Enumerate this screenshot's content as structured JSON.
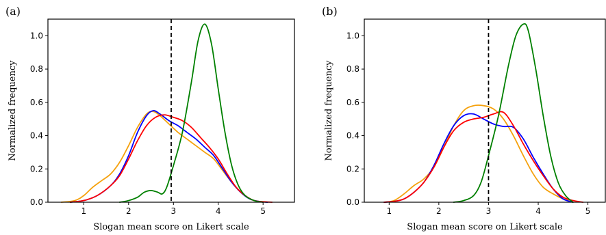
{
  "chart_data": [
    {
      "type": "line",
      "panel_label": "(a)",
      "title": "",
      "xlabel": "Slogan mean score on Likert scale",
      "ylabel": "Normalized frequency",
      "xlim": [
        0.2,
        5.7
      ],
      "ylim": [
        0,
        1.1
      ],
      "xticks": [
        1,
        2,
        3,
        4,
        5
      ],
      "yticks": [
        0.0,
        0.2,
        0.4,
        0.6,
        0.8,
        1.0
      ],
      "xtick_labels": [
        "1",
        "2",
        "3",
        "4",
        "5"
      ],
      "ytick_labels": [
        "0.0",
        "0.2",
        "0.4",
        "0.6",
        "0.8",
        "1.0"
      ],
      "vline": 2.95,
      "grid": false,
      "series": [
        {
          "color": "#f5a10c",
          "x": [
            0.5,
            0.8,
            1.0,
            1.2,
            1.4,
            1.6,
            1.8,
            2.0,
            2.2,
            2.4,
            2.55,
            2.7,
            2.9,
            3.1,
            3.3,
            3.5,
            3.7,
            3.9,
            4.1,
            4.3,
            4.5,
            4.7,
            4.9,
            5.1
          ],
          "values": [
            0.0,
            0.01,
            0.04,
            0.09,
            0.13,
            0.17,
            0.24,
            0.34,
            0.45,
            0.53,
            0.545,
            0.52,
            0.47,
            0.42,
            0.38,
            0.34,
            0.3,
            0.26,
            0.19,
            0.12,
            0.06,
            0.02,
            0.005,
            0.0
          ]
        },
        {
          "color": "#0000ff",
          "x": [
            0.7,
            1.0,
            1.3,
            1.6,
            1.8,
            2.0,
            2.2,
            2.4,
            2.55,
            2.7,
            2.9,
            3.1,
            3.3,
            3.5,
            3.7,
            3.9,
            4.1,
            4.3,
            4.5,
            4.7,
            4.9,
            5.1
          ],
          "values": [
            0.0,
            0.01,
            0.04,
            0.1,
            0.17,
            0.28,
            0.42,
            0.52,
            0.55,
            0.53,
            0.49,
            0.46,
            0.42,
            0.38,
            0.33,
            0.28,
            0.2,
            0.12,
            0.06,
            0.02,
            0.005,
            0.0
          ]
        },
        {
          "color": "#ff0000",
          "x": [
            0.7,
            1.0,
            1.3,
            1.6,
            1.8,
            2.0,
            2.2,
            2.4,
            2.6,
            2.8,
            3.0,
            3.2,
            3.4,
            3.6,
            3.8,
            4.0,
            4.2,
            4.4,
            4.6,
            4.8,
            5.0,
            5.2
          ],
          "values": [
            0.0,
            0.01,
            0.04,
            0.1,
            0.16,
            0.26,
            0.37,
            0.46,
            0.51,
            0.525,
            0.51,
            0.49,
            0.45,
            0.39,
            0.33,
            0.26,
            0.17,
            0.09,
            0.04,
            0.01,
            0.003,
            0.0
          ]
        },
        {
          "color": "#008000",
          "x": [
            1.8,
            2.0,
            2.2,
            2.35,
            2.5,
            2.65,
            2.75,
            2.85,
            3.0,
            3.2,
            3.4,
            3.55,
            3.7,
            3.85,
            4.0,
            4.15,
            4.3,
            4.45,
            4.6,
            4.8,
            5.0
          ],
          "values": [
            0.0,
            0.01,
            0.03,
            0.06,
            0.07,
            0.06,
            0.05,
            0.09,
            0.22,
            0.42,
            0.72,
            0.97,
            1.07,
            0.95,
            0.68,
            0.42,
            0.22,
            0.1,
            0.04,
            0.01,
            0.0
          ]
        }
      ]
    },
    {
      "type": "line",
      "panel_label": "(b)",
      "title": "",
      "xlabel": "Slogan mean score on Likert scale",
      "ylabel": "Normalized frequency",
      "xlim": [
        0.5,
        5.35
      ],
      "ylim": [
        0,
        1.1
      ],
      "xticks": [
        1,
        2,
        3,
        4,
        5
      ],
      "yticks": [
        0.0,
        0.2,
        0.4,
        0.6,
        0.8,
        1.0
      ],
      "xtick_labels": [
        "1",
        "2",
        "3",
        "4",
        "5"
      ],
      "ytick_labels": [
        "0.0",
        "0.2",
        "0.4",
        "0.6",
        "0.8",
        "1.0"
      ],
      "vline": 3.0,
      "grid": false,
      "series": [
        {
          "color": "#f5a10c",
          "x": [
            0.9,
            1.1,
            1.3,
            1.5,
            1.7,
            1.9,
            2.1,
            2.3,
            2.5,
            2.7,
            2.9,
            3.1,
            3.3,
            3.5,
            3.7,
            3.9,
            4.1,
            4.3,
            4.5,
            4.7
          ],
          "values": [
            0.0,
            0.01,
            0.05,
            0.1,
            0.14,
            0.21,
            0.33,
            0.46,
            0.55,
            0.58,
            0.58,
            0.56,
            0.5,
            0.4,
            0.28,
            0.17,
            0.09,
            0.05,
            0.02,
            0.0
          ]
        },
        {
          "color": "#0000ff",
          "x": [
            0.9,
            1.1,
            1.3,
            1.5,
            1.7,
            1.9,
            2.1,
            2.3,
            2.5,
            2.7,
            2.9,
            3.1,
            3.3,
            3.5,
            3.7,
            3.9,
            4.1,
            4.3,
            4.5,
            4.7
          ],
          "values": [
            0.0,
            0.005,
            0.02,
            0.06,
            0.12,
            0.22,
            0.35,
            0.46,
            0.52,
            0.53,
            0.5,
            0.47,
            0.455,
            0.45,
            0.38,
            0.27,
            0.17,
            0.08,
            0.02,
            0.0
          ]
        },
        {
          "color": "#ff0000",
          "x": [
            0.9,
            1.1,
            1.3,
            1.5,
            1.7,
            1.9,
            2.1,
            2.3,
            2.5,
            2.7,
            2.9,
            3.1,
            3.3,
            3.5,
            3.7,
            3.9,
            4.1,
            4.3,
            4.5,
            4.7,
            4.9
          ],
          "values": [
            0.0,
            0.005,
            0.02,
            0.06,
            0.12,
            0.21,
            0.33,
            0.43,
            0.48,
            0.5,
            0.51,
            0.53,
            0.54,
            0.46,
            0.35,
            0.25,
            0.16,
            0.08,
            0.03,
            0.01,
            0.0
          ]
        },
        {
          "color": "#008000",
          "x": [
            2.3,
            2.5,
            2.7,
            2.85,
            3.0,
            3.2,
            3.4,
            3.55,
            3.7,
            3.8,
            3.95,
            4.1,
            4.25,
            4.4,
            4.55,
            4.7
          ],
          "values": [
            0.0,
            0.01,
            0.04,
            0.12,
            0.28,
            0.52,
            0.82,
            1.0,
            1.07,
            1.03,
            0.8,
            0.52,
            0.28,
            0.12,
            0.04,
            0.0
          ]
        }
      ]
    }
  ]
}
